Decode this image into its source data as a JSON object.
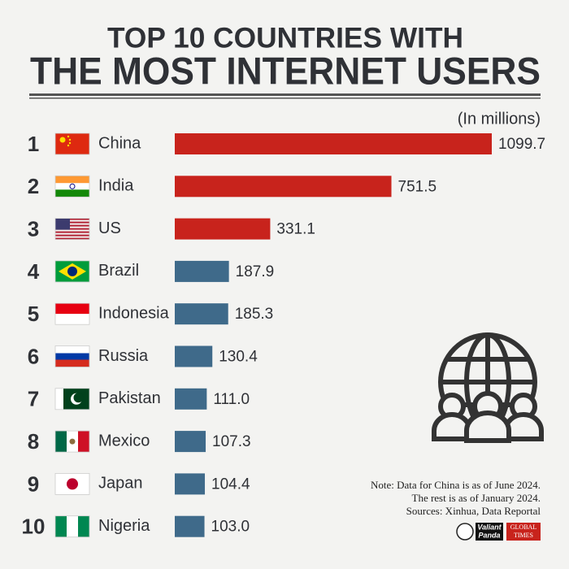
{
  "chart_data": {
    "type": "bar",
    "orientation": "horizontal",
    "title": [
      "TOP 10 COUNTRIES WITH",
      "THE MOST INTERNET USERS"
    ],
    "unit": "(In millions)",
    "ranks": [
      "1",
      "2",
      "3",
      "4",
      "5",
      "6",
      "7",
      "8",
      "9",
      "10"
    ],
    "categories": [
      "China",
      "India",
      "US",
      "Brazil",
      "Indonesia",
      "Russia",
      "Pakistan",
      "Mexico",
      "Japan",
      "Nigeria"
    ],
    "values": [
      1099.7,
      751.5,
      331.1,
      187.9,
      185.3,
      130.4,
      111.0,
      107.3,
      104.4,
      103.0
    ],
    "value_labels": [
      "1099.7",
      "751.5",
      "331.1",
      "187.9",
      "185.3",
      "130.4",
      "111.0",
      "107.3",
      "104.4",
      "103.0"
    ],
    "colors": [
      "#c8231c",
      "#c8231c",
      "#c8231c",
      "#3f6a8a",
      "#3f6a8a",
      "#3f6a8a",
      "#3f6a8a",
      "#3f6a8a",
      "#3f6a8a",
      "#3f6a8a"
    ],
    "notes": [
      "Note: Data for China is as of June 2024.",
      "The rest is as of January 2024.",
      "Sources: Xinhua, Data Reportal"
    ],
    "logos": [
      "Valiant",
      "Panda",
      "GLOBAL",
      "TIMES"
    ]
  }
}
